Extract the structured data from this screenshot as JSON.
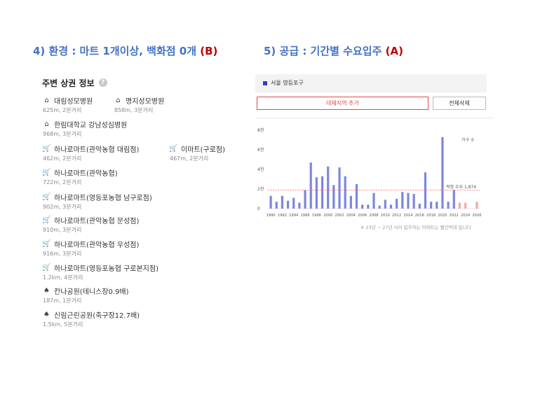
{
  "headings": {
    "left": {
      "text": "4) 환경 : 마트 1개이상, 백화점  0개 ",
      "tag": "(B)"
    },
    "right": {
      "text": "5) 공급 : 기간별 수요입주 ",
      "tag": "(A)"
    }
  },
  "left_panel": {
    "title": "주변 상권 정보",
    "help": "?",
    "items": [
      {
        "icon": "hospital-icon",
        "glyph": "⌂",
        "name": "대림성모병원",
        "meta": "625m, 2분거리"
      },
      {
        "icon": "hospital-icon",
        "glyph": "⌂",
        "name": "명지성모병원",
        "meta": "858m, 3분거리"
      },
      {
        "icon": "hospital-icon",
        "glyph": "⌂",
        "name": "한림대학교 강남성심병원",
        "meta": "968m, 3분거리"
      },
      {
        "icon": "cart-icon",
        "glyph": "🛒",
        "name": "하나로마트(관악농협 대림점)",
        "meta": "462m, 2분거리"
      },
      {
        "icon": "cart-icon",
        "glyph": "🛒",
        "name": "이마트(구로점)",
        "meta": "467m, 2분거리"
      },
      {
        "icon": "cart-icon",
        "glyph": "🛒",
        "name": "하나로마트(관악농협)",
        "meta": "722m, 2분거리"
      },
      {
        "icon": "cart-icon",
        "glyph": "🛒",
        "name": "하나로마트(영등포농협 남구로점)",
        "meta": "902m, 3분거리"
      },
      {
        "icon": "cart-icon",
        "glyph": "🛒",
        "name": "하나로마트(관악농협 문성점)",
        "meta": "910m, 3분거리"
      },
      {
        "icon": "cart-icon",
        "glyph": "🛒",
        "name": "하나로마트(관악농협 우성점)",
        "meta": "916m, 3분거리"
      },
      {
        "icon": "cart-icon",
        "glyph": "🛒",
        "name": "하나로마트(영등포농협 구로본지점)",
        "meta": "1.2km, 4분거리"
      },
      {
        "icon": "park-icon",
        "glyph": "♠",
        "name": "칸나공원(테니스장0.9배)",
        "meta": "187m, 1분거리"
      },
      {
        "icon": "park-icon",
        "glyph": "♠",
        "name": "신림근린공원(축구장12.7배)",
        "meta": "1.5km, 5분거리"
      }
    ]
  },
  "right_panel": {
    "region": "서울 영등포구",
    "add_button": "대체지역 추가",
    "clear_button": "전체삭제",
    "note": "※ 23년 ~ 27년 사이 입주하는 아파트는 빨간막대 입니다"
  },
  "chart_data": {
    "type": "bar",
    "legend": "가구 수",
    "legend_position": "top-right",
    "y_tick_labels": [
      "0",
      "2천",
      "4천",
      "6천",
      "8천"
    ],
    "x_tick_labels": [
      "1990",
      "1992",
      "1994",
      "1996",
      "1998",
      "2000",
      "2002",
      "2004",
      "2006",
      "2008",
      "2010",
      "2012",
      "2014",
      "2016",
      "2018",
      "2020",
      "2022",
      "2024",
      "2026"
    ],
    "ylim": [
      0,
      8000
    ],
    "years": [
      1990,
      1991,
      1992,
      1993,
      1994,
      1995,
      1996,
      1997,
      1998,
      1999,
      2000,
      2001,
      2002,
      2003,
      2004,
      2005,
      2006,
      2007,
      2008,
      2009,
      2010,
      2011,
      2012,
      2013,
      2014,
      2015,
      2016,
      2017,
      2018,
      2019,
      2020,
      2021,
      2022,
      2023,
      2024,
      2025,
      2026
    ],
    "values": [
      1300,
      700,
      1300,
      800,
      1100,
      600,
      1900,
      4700,
      3200,
      3300,
      4300,
      2400,
      4200,
      3300,
      1300,
      2500,
      400,
      400,
      1600,
      300,
      900,
      400,
      1000,
      1700,
      1600,
      1500,
      500,
      3700,
      700,
      700,
      7300,
      700,
      1900,
      600,
      600,
      0,
      700
    ],
    "highlight_from_year": 2023,
    "colors": {
      "normal": "#7d86e0",
      "highlight": "#f4a9a6",
      "reference_line": "#ef5b5b"
    },
    "reference": {
      "label": "적정 수요 1,874",
      "value": 1874
    }
  }
}
